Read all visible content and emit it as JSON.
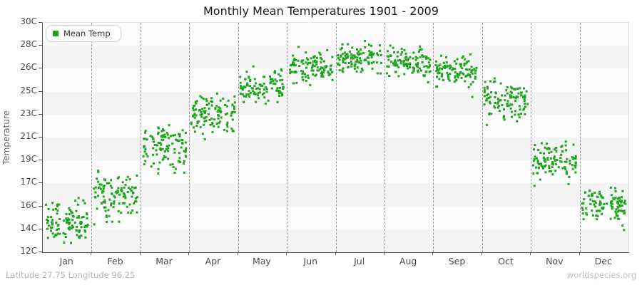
{
  "title": "Monthly Mean Temperatures 1901 - 2009",
  "legend": {
    "label": "Mean Temp"
  },
  "y_axis": {
    "label": "Temperature",
    "tick_labels": [
      "30C",
      "28C",
      "26C",
      "25C",
      "23C",
      "21C",
      "19C",
      "17C",
      "16C",
      "14C",
      "12C"
    ],
    "tick_values": [
      30,
      28.2,
      26.4,
      24.6,
      22.8,
      21,
      19.2,
      17.4,
      15.6,
      13.8,
      12
    ]
  },
  "x_axis": {
    "categories": [
      "Jan",
      "Feb",
      "Mar",
      "Apr",
      "May",
      "Jun",
      "Jul",
      "Aug",
      "Sep",
      "Oct",
      "Nov",
      "Dec"
    ]
  },
  "footer": {
    "left": "Latitude 27.75 Longitude 96.25",
    "right": "worldspecies.org"
  },
  "colors": {
    "point": "#1ea51e",
    "band_light": "#fbfbfb",
    "band_dark": "#f4f4f4",
    "gridline": "#9a9a9a",
    "axis": "#545454",
    "title_text": "#1a1a1a",
    "tick_text": "#4a4a4a",
    "footer_text": "#b4b4b4"
  },
  "chart_data": {
    "type": "scatter",
    "title": "Monthly Mean Temperatures 1901 - 2009",
    "xlabel": "",
    "ylabel": "Temperature",
    "ylim": [
      12,
      30
    ],
    "grid": "dashed vertical month boundaries, alternating horizontal shaded bands every 1.8C",
    "legend_position": "top-left inside plot",
    "marker": "small green square",
    "categories": [
      "Jan",
      "Feb",
      "Mar",
      "Apr",
      "May",
      "Jun",
      "Jul",
      "Aug",
      "Sep",
      "Oct",
      "Nov",
      "Dec"
    ],
    "series": [
      {
        "name": "Mean Temp",
        "years_range": "1901 - 2009",
        "points_per_month": 109,
        "monthly_stats": [
          {
            "month": "Jan",
            "mean": 14.4,
            "std": 0.78,
            "min": 12.4,
            "max": 16.3
          },
          {
            "month": "Feb",
            "mean": 16.4,
            "std": 0.95,
            "min": 13.9,
            "max": 18.7
          },
          {
            "month": "Mar",
            "mean": 20.2,
            "std": 0.9,
            "min": 17.9,
            "max": 22.0
          },
          {
            "month": "Apr",
            "mean": 22.9,
            "std": 0.8,
            "min": 20.8,
            "max": 24.7
          },
          {
            "month": "May",
            "mean": 25.0,
            "std": 0.65,
            "min": 23.3,
            "max": 26.6
          },
          {
            "month": "Jun",
            "mean": 26.6,
            "std": 0.62,
            "min": 24.9,
            "max": 28.3
          },
          {
            "month": "Jul",
            "mean": 27.2,
            "std": 0.55,
            "min": 25.8,
            "max": 28.6
          },
          {
            "month": "Aug",
            "mean": 27.0,
            "std": 0.6,
            "min": 25.1,
            "max": 28.5
          },
          {
            "month": "Sep",
            "mean": 26.2,
            "std": 0.62,
            "min": 24.1,
            "max": 27.9
          },
          {
            "month": "Oct",
            "mean": 23.9,
            "std": 0.8,
            "min": 21.8,
            "max": 26.0
          },
          {
            "month": "Nov",
            "mean": 19.2,
            "std": 0.75,
            "min": 17.2,
            "max": 20.9
          },
          {
            "month": "Dec",
            "mean": 15.8,
            "std": 0.72,
            "min": 13.0,
            "max": 17.1
          }
        ]
      }
    ]
  }
}
